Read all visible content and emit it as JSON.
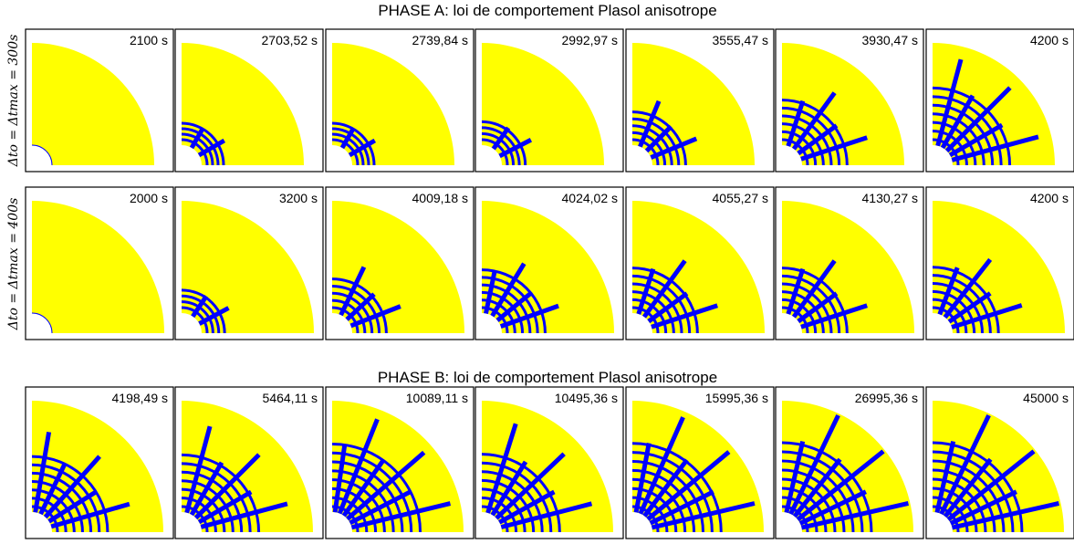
{
  "phase_a": {
    "title": "PHASE A: loi de comportement Plasol anisotrope",
    "rows": [
      {
        "label": "Δto = Δtmax = 300s",
        "panels": [
          "2100 s",
          "2703,52 s",
          "2739,84 s",
          "2992,97 s",
          "3555,47 s",
          "3930,47 s",
          "4200 s"
        ]
      },
      {
        "label": "Δto = Δtmax = 400s",
        "panels": [
          "2000 s",
          "3200 s",
          "4009,18 s",
          "4024,02 s",
          "4055,27 s",
          "4130,27 s",
          "4200 s"
        ]
      }
    ]
  },
  "phase_b": {
    "title": "PHASE B: loi de comportement Plasol anisotrope",
    "panels": [
      "4198,49 s",
      "5464,11 s",
      "10089,11 s",
      "10495,36 s",
      "15995,36 s",
      "26995,36 s",
      "45000 s"
    ]
  }
}
